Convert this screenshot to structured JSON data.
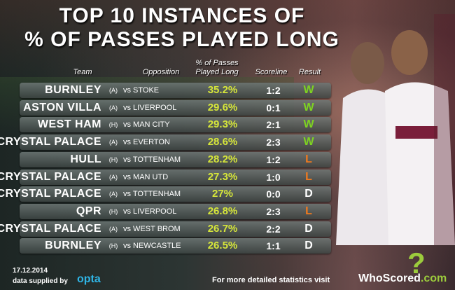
{
  "title_line1": "TOP 10 INSTANCES OF",
  "title_line2": "% OF PASSES PLAYED LONG",
  "headers": {
    "team": "Team",
    "opposition": "Opposition",
    "pct": "% of Passes Played Long",
    "scoreline": "Scoreline",
    "result": "Result"
  },
  "rows": [
    {
      "team": "BURNLEY",
      "venue": "(A)",
      "opposition": "vs STOKE",
      "pct": "35.2%",
      "score": "1:2",
      "result": "W"
    },
    {
      "team": "ASTON VILLA",
      "venue": "(A)",
      "opposition": "vs LIVERPOOL",
      "pct": "29.6%",
      "score": "0:1",
      "result": "W"
    },
    {
      "team": "WEST HAM",
      "venue": "(H)",
      "opposition": "vs MAN CITY",
      "pct": "29.3%",
      "score": "2:1",
      "result": "W"
    },
    {
      "team": "CRYSTAL PALACE",
      "venue": "(A)",
      "opposition": "vs EVERTON",
      "pct": "28.6%",
      "score": "2:3",
      "result": "W"
    },
    {
      "team": "HULL",
      "venue": "(H)",
      "opposition": "vs TOTTENHAM",
      "pct": "28.2%",
      "score": "1:2",
      "result": "L"
    },
    {
      "team": "CRYSTAL PALACE",
      "venue": "(A)",
      "opposition": "vs MAN UTD",
      "pct": "27.3%",
      "score": "1:0",
      "result": "L"
    },
    {
      "team": "CRYSTAL PALACE",
      "venue": "(A)",
      "opposition": "vs TOTTENHAM",
      "pct": "27%",
      "score": "0:0",
      "result": "D"
    },
    {
      "team": "QPR",
      "venue": "(H)",
      "opposition": "vs LIVERPOOL",
      "pct": "26.8%",
      "score": "2:3",
      "result": "L"
    },
    {
      "team": "CRYSTAL PALACE",
      "venue": "(A)",
      "opposition": "vs WEST BROM",
      "pct": "26.7%",
      "score": "2:2",
      "result": "D"
    },
    {
      "team": "BURNLEY",
      "venue": "(H)",
      "opposition": "vs NEWCASTLE",
      "pct": "26.5%",
      "score": "1:1",
      "result": "D"
    }
  ],
  "result_colors": {
    "W": "#7ed321",
    "L": "#f07a1e",
    "D": "#ffffff"
  },
  "footer": {
    "date": "17.12.2014",
    "supplied": "data supplied by",
    "opta": "opta",
    "more": "For more detailed statistics visit",
    "brand": "WhoScored",
    "brand_dot": ".",
    "brand_com": "com",
    "logo_mark": "?"
  }
}
